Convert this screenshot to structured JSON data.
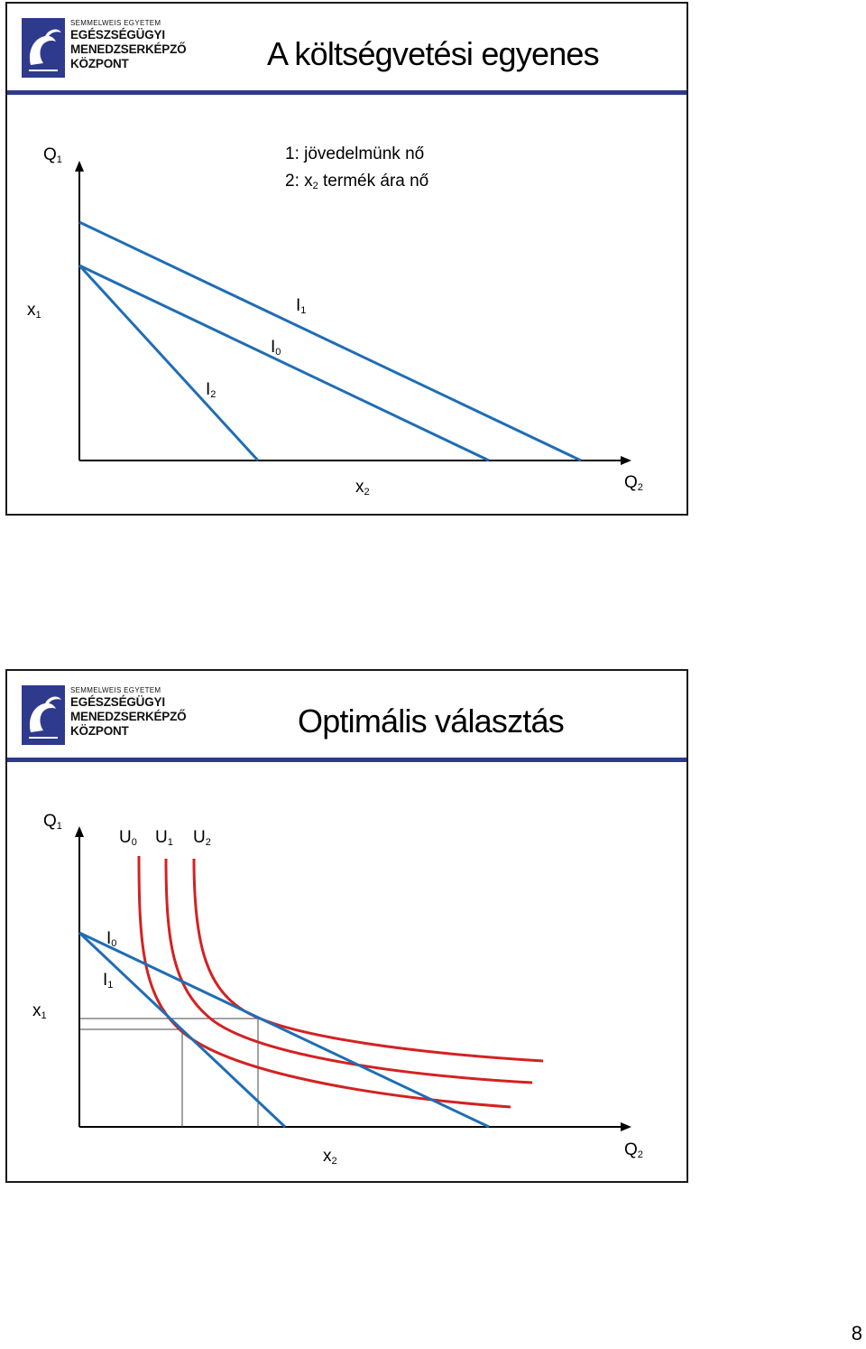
{
  "logo": {
    "line1": "SEMMELWEIS EGYETEM",
    "line2": "EGÉSZSÉGÜGYI",
    "line3": "MENEDZSERKÉPZŐ",
    "line4": "KÖZPONT",
    "icon": "swan-emblem-icon"
  },
  "colors": {
    "header_bar": "#2e3a8c",
    "budget_line": "#1f6db5",
    "indifference_curve": "#d42121",
    "axis": "#000000"
  },
  "slide1": {
    "title": "A költségvetési egyenes",
    "legend": [
      {
        "text": "1: jövedelmünk nő"
      },
      {
        "prefix": "2: x",
        "sub": "2",
        "suffix": " termék ára nő"
      }
    ],
    "y_axis": {
      "label": "Q",
      "sub": "1"
    },
    "x_axis": {
      "label": "Q",
      "sub": "2"
    },
    "x1_label": {
      "label": "x",
      "sub": "1"
    },
    "x2_label": {
      "label": "x",
      "sub": "2"
    },
    "lines": [
      {
        "label": "I",
        "sub": "0"
      },
      {
        "label": "I",
        "sub": "1"
      },
      {
        "label": "I",
        "sub": "2"
      }
    ]
  },
  "slide2": {
    "title": "Optimális választás",
    "y_axis": {
      "label": "Q",
      "sub": "1"
    },
    "x_axis": {
      "label": "Q",
      "sub": "2"
    },
    "x1_label": {
      "label": "x",
      "sub": "1"
    },
    "x2_label": {
      "label": "x",
      "sub": "2"
    },
    "curves": [
      {
        "label": "U",
        "sub": "0"
      },
      {
        "label": "U",
        "sub": "1"
      },
      {
        "label": "U",
        "sub": "2"
      }
    ],
    "lines": [
      {
        "label": "I",
        "sub": "0"
      },
      {
        "label": "I",
        "sub": "1"
      }
    ]
  },
  "page_number": "8"
}
